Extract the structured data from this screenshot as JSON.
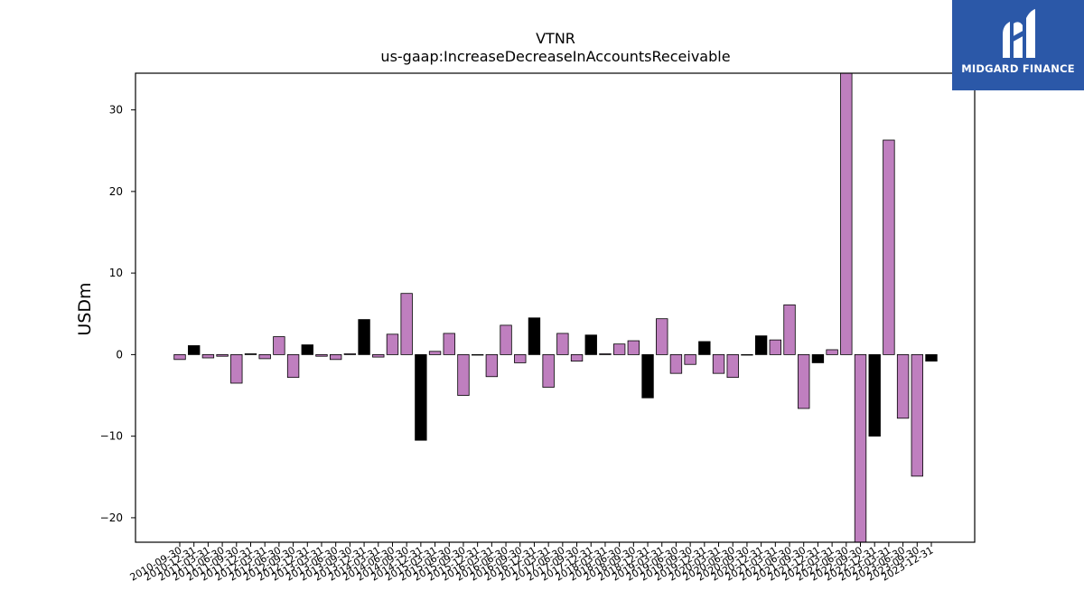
{
  "brand": {
    "name": "MIDGARD FINANCE",
    "logo_icon": "midgard-m-logo-icon",
    "color": "#2b58a8"
  },
  "chart_data": {
    "type": "bar",
    "title": "VTNR",
    "subtitle": "us-gaap:IncreaseDecreaseInAccountsReceivable",
    "ylabel": "USDm",
    "xlabel": "",
    "ylim": [
      -23,
      34.5
    ],
    "yticks": [
      -20,
      -10,
      0,
      10,
      20,
      30
    ],
    "grid": false,
    "colors": {
      "q": "#bf7fbf",
      "fy": "#000000",
      "edge": "#000000"
    },
    "categories": [
      "2010-09-30",
      "2010-12-31",
      "2011-03-31",
      "2011-06-30",
      "2011-09-30",
      "2011-12-31",
      "2012-03-31",
      "2012-06-30",
      "2012-09-30",
      "2012-12-31",
      "2013-03-31",
      "2013-06-30",
      "2013-09-30",
      "2013-12-31",
      "2014-03-31",
      "2014-06-30",
      "2014-09-30",
      "2014-12-31",
      "2015-03-31",
      "2015-06-30",
      "2015-09-30",
      "2015-12-31",
      "2016-03-31",
      "2016-06-30",
      "2016-09-30",
      "2016-12-31",
      "2017-03-31",
      "2017-06-30",
      "2017-09-30",
      "2017-12-31",
      "2018-03-31",
      "2018-06-30",
      "2018-09-30",
      "2018-12-31",
      "2019-03-31",
      "2019-06-30",
      "2019-09-30",
      "2019-12-31",
      "2020-03-31",
      "2020-06-30",
      "2020-09-30",
      "2020-12-31",
      "2021-03-31",
      "2021-06-30",
      "2021-09-30",
      "2021-12-31",
      "2022-03-31",
      "2022-06-30",
      "2022-09-30",
      "2022-12-31",
      "2023-03-31",
      "2023-06-30",
      "2023-09-30",
      "2023-12-31"
    ],
    "values": [
      -0.6,
      1.1,
      -0.4,
      -0.2,
      -3.5,
      0.1,
      -0.5,
      2.2,
      -2.8,
      1.2,
      -0.2,
      -0.6,
      0.1,
      4.3,
      -0.3,
      2.5,
      7.5,
      -10.5,
      0.4,
      2.6,
      -5.0,
      0.0,
      -2.7,
      3.6,
      -1.0,
      4.5,
      -4.0,
      2.6,
      -0.8,
      2.4,
      0.1,
      1.3,
      1.7,
      -5.3,
      4.4,
      -2.3,
      -1.2,
      1.6,
      -2.3,
      -2.8,
      0.0,
      2.3,
      1.8,
      6.1,
      -6.6,
      -1.0,
      0.6,
      34.5,
      -23.0,
      -10.0,
      26.3,
      -7.8,
      -14.9,
      -0.8
    ],
    "annual": [
      false,
      true,
      false,
      false,
      false,
      true,
      false,
      false,
      false,
      true,
      false,
      false,
      false,
      true,
      false,
      false,
      false,
      true,
      false,
      false,
      false,
      true,
      false,
      false,
      false,
      true,
      false,
      false,
      false,
      true,
      false,
      false,
      false,
      true,
      false,
      false,
      false,
      true,
      false,
      false,
      false,
      true,
      false,
      false,
      false,
      true,
      false,
      false,
      false,
      true,
      false,
      false,
      false,
      true
    ]
  }
}
